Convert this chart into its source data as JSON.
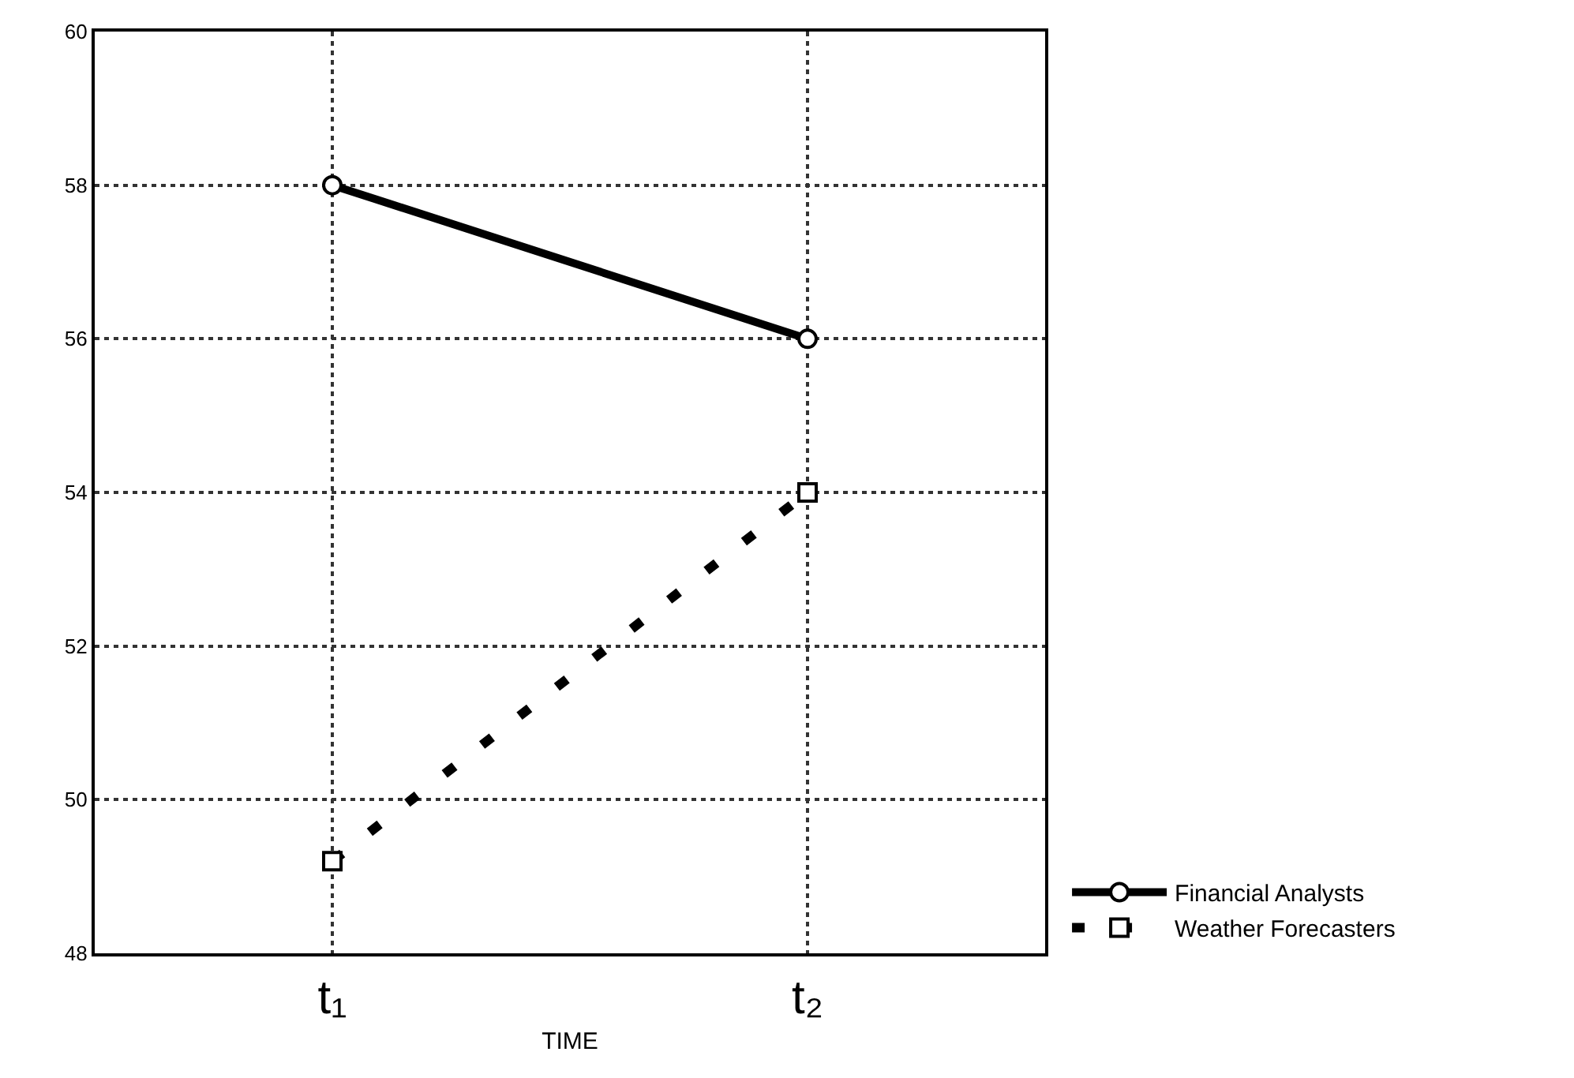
{
  "chart_data": {
    "type": "line",
    "xlabel": "TIME",
    "categories": [
      "t₁",
      "t₂"
    ],
    "series": [
      {
        "name": "Financial Analysts",
        "color": "#000000",
        "values": [
          58,
          56
        ],
        "marker": "circle",
        "line_style": "solid"
      },
      {
        "name": "Weather Forecasters",
        "color": "#000000",
        "values": [
          49.2,
          54
        ],
        "marker": "square",
        "line_style": "dashed"
      }
    ],
    "ylim": [
      48,
      60
    ],
    "yticks": [
      48,
      50,
      52,
      54,
      56,
      58,
      60
    ],
    "grid": true,
    "legend": "bottom right"
  }
}
